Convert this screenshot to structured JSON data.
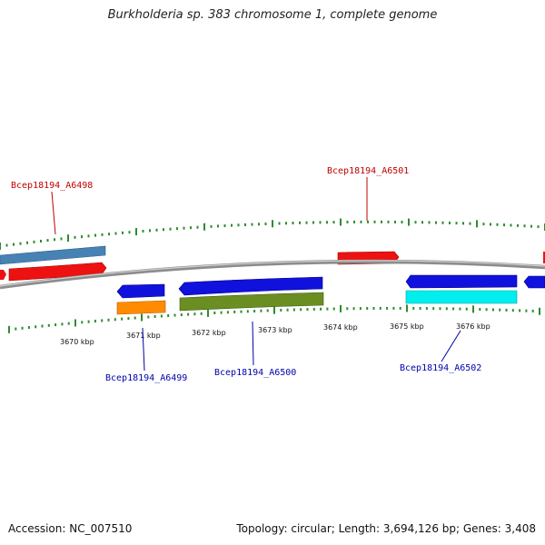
{
  "title": "Burkholderia sp. 383 chromosome 1, complete genome",
  "footer": {
    "accession": "Accession: NC_007510",
    "summary": "Topology: circular; Length: 3,694,126 bp; Genes: 3,408"
  },
  "colors": {
    "backbone": "#8c8c8c",
    "tick": "#2e8b2e",
    "forward_label": "#c00000",
    "reverse_label": "#0000aa",
    "red": "#ee1111",
    "steelblue": "#4682b4",
    "blue": "#1111dd",
    "orange": "#ff8c00",
    "olive": "#6b8e23",
    "cyan": "#00eeee"
  },
  "kbp_labels": [
    "3670 kbp",
    "3671 kbp",
    "3672 kbp",
    "3673 kbp",
    "3674 kbp",
    "3675 kbp",
    "3676 kbp"
  ],
  "gene_labels": [
    {
      "text": "Bcep18194_A6498",
      "strand": "forward"
    },
    {
      "text": "Bcep18194_A6501",
      "strand": "forward"
    },
    {
      "text": "Bcep18194_A6499",
      "strand": "reverse"
    },
    {
      "text": "Bcep18194_A6500",
      "strand": "reverse"
    },
    {
      "text": "Bcep18194_A6502",
      "strand": "reverse"
    }
  ]
}
